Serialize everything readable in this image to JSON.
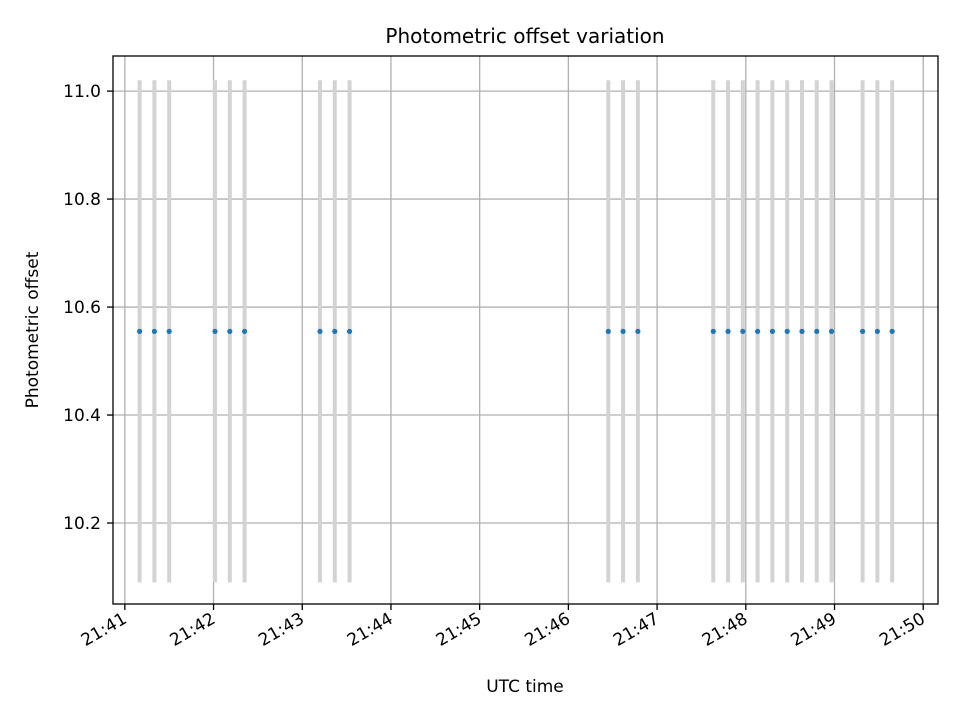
{
  "chart_data": {
    "type": "scatter",
    "title": "Photometric offset variation",
    "xlabel": "UTC time",
    "ylabel": "Photometric offset",
    "x_tick_labels": [
      "21:41",
      "21:42",
      "21:43",
      "21:44",
      "21:45",
      "21:46",
      "21:47",
      "21:48",
      "21:49",
      "21:50"
    ],
    "y_tick_labels": [
      "10.2",
      "10.4",
      "10.6",
      "10.8",
      "11.0"
    ],
    "y_ticks": [
      10.2,
      10.4,
      10.6,
      10.8,
      11.0
    ],
    "xlim": [
      "21:40:52",
      "21:50:10"
    ],
    "ylim": [
      10.05,
      11.065
    ],
    "grid": true,
    "series": [
      {
        "x": [
          "21:41:10",
          "21:41:20",
          "21:41:30",
          "21:42:01",
          "21:42:11",
          "21:42:21",
          "21:43:12",
          "21:43:22",
          "21:43:32",
          "21:46:27",
          "21:46:37",
          "21:46:47",
          "21:47:38",
          "21:47:48",
          "21:47:58",
          "21:48:08",
          "21:48:18",
          "21:48:28",
          "21:48:38",
          "21:48:48",
          "21:48:58",
          "21:49:19",
          "21:49:29",
          "21:49:39"
        ],
        "y": [
          10.555,
          10.555,
          10.555,
          10.555,
          10.555,
          10.555,
          10.555,
          10.555,
          10.555,
          10.555,
          10.555,
          10.555,
          10.555,
          10.555,
          10.555,
          10.555,
          10.555,
          10.555,
          10.555,
          10.555,
          10.555,
          10.555,
          10.555,
          10.555
        ],
        "error": 0.465,
        "marker_color": "#1f77b4",
        "error_color": "#d3d3d3"
      }
    ]
  }
}
